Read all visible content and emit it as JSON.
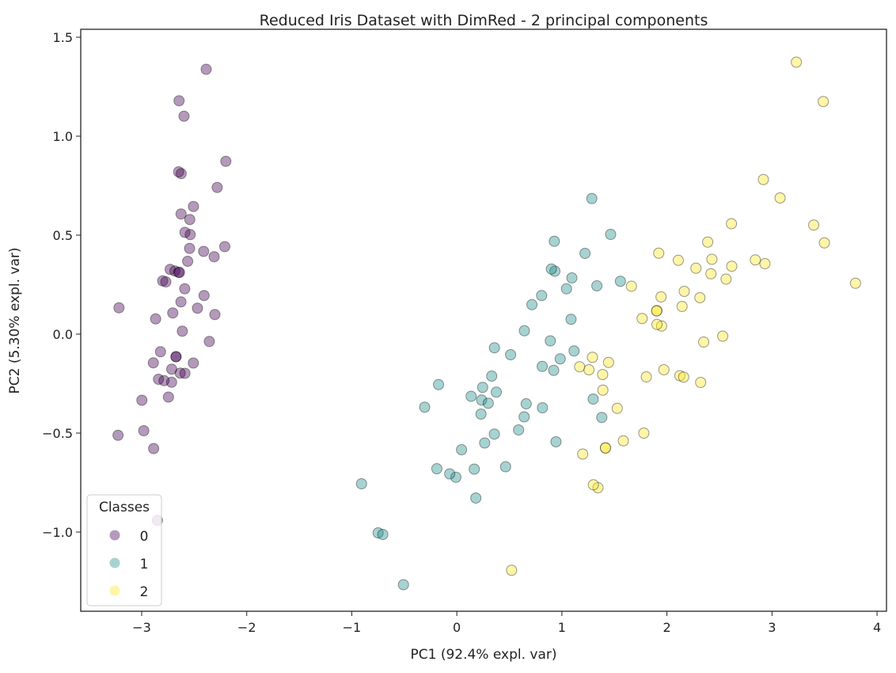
{
  "chart_data": {
    "type": "scatter",
    "title": "Reduced Iris Dataset with DimRed - 2 principal components",
    "xlabel": "PC1 (92.4% expl. var)",
    "ylabel": "PC2 (5.30% expl. var)",
    "xlim": [
      -3.58,
      4.09
    ],
    "ylim": [
      -1.4,
      1.54
    ],
    "xticks": [
      -3,
      -2,
      -1,
      0,
      1,
      2,
      3,
      4
    ],
    "xtick_labels": [
      "−3",
      "−2",
      "−1",
      "0",
      "1",
      "2",
      "3",
      "4"
    ],
    "yticks": [
      -1.0,
      -0.5,
      0.0,
      0.5,
      1.0,
      1.5
    ],
    "ytick_labels": [
      "−1.0",
      "−0.5",
      "0.0",
      "0.5",
      "1.0",
      "1.5"
    ],
    "grid": false,
    "legend": {
      "title": "Classes",
      "placement": "bottom-left"
    },
    "series": [
      {
        "name": "0",
        "color": "#440154",
        "points": [
          [
            -2.684,
            0.319
          ],
          [
            -2.714,
            -0.177
          ],
          [
            -2.889,
            -0.145
          ],
          [
            -2.745,
            -0.318
          ],
          [
            -2.729,
            0.327
          ],
          [
            -2.281,
            0.741
          ],
          [
            -2.821,
            -0.089
          ],
          [
            -2.626,
            0.163
          ],
          [
            -2.886,
            -0.578
          ],
          [
            -2.673,
            -0.114
          ],
          [
            -2.507,
            0.645
          ],
          [
            -2.613,
            0.015
          ],
          [
            -2.787,
            -0.235
          ],
          [
            -3.225,
            -0.511
          ],
          [
            -2.644,
            1.179
          ],
          [
            -2.386,
            1.338
          ],
          [
            -2.624,
            0.811
          ],
          [
            -2.648,
            0.312
          ],
          [
            -2.199,
            0.873
          ],
          [
            -2.588,
            0.514
          ],
          [
            -2.31,
            0.391
          ],
          [
            -2.544,
            0.433
          ],
          [
            -3.216,
            0.133
          ],
          [
            -2.303,
            0.099
          ],
          [
            -2.356,
            -0.037
          ],
          [
            -2.508,
            -0.146
          ],
          [
            -2.469,
            0.131
          ],
          [
            -2.562,
            0.368
          ],
          [
            -2.64,
            0.312
          ],
          [
            -2.633,
            -0.197
          ],
          [
            -2.588,
            -0.198
          ],
          [
            -2.41,
            0.418
          ],
          [
            -2.648,
            0.82
          ],
          [
            -2.597,
            1.101
          ],
          [
            -2.673,
            -0.114
          ],
          [
            -2.867,
            0.077
          ],
          [
            -2.625,
            0.607
          ],
          [
            -2.8,
            0.269
          ],
          [
            -2.98,
            -0.488
          ],
          [
            -2.59,
            0.229
          ],
          [
            -2.77,
            0.264
          ],
          [
            -2.85,
            -0.941
          ],
          [
            -2.998,
            -0.334
          ],
          [
            -2.406,
            0.195
          ],
          [
            -2.209,
            0.442
          ],
          [
            -2.715,
            -0.243
          ],
          [
            -2.538,
            0.503
          ],
          [
            -2.84,
            -0.228
          ],
          [
            -2.542,
            0.579
          ],
          [
            -2.704,
            0.107
          ]
        ]
      },
      {
        "name": "1",
        "color": "#21918c",
        "points": [
          [
            1.285,
            0.685
          ],
          [
            0.933,
            0.318
          ],
          [
            1.464,
            0.504
          ],
          [
            0.181,
            -0.828
          ],
          [
            1.087,
            0.075
          ],
          [
            0.641,
            -0.418
          ],
          [
            1.095,
            0.284
          ],
          [
            -0.749,
            -1.004
          ],
          [
            1.044,
            0.229
          ],
          [
            -0.009,
            -0.723
          ],
          [
            -0.508,
            -1.266
          ],
          [
            0.512,
            -0.104
          ],
          [
            0.265,
            -0.55
          ],
          [
            0.984,
            -0.125
          ],
          [
            -0.174,
            -0.255
          ],
          [
            0.928,
            0.469
          ],
          [
            0.66,
            -0.352
          ],
          [
            0.236,
            -0.333
          ],
          [
            0.944,
            -0.544
          ],
          [
            0.045,
            -0.584
          ],
          [
            1.116,
            -0.085
          ],
          [
            0.358,
            -0.069
          ],
          [
            1.298,
            -0.328
          ],
          [
            0.922,
            -0.183
          ],
          [
            0.715,
            0.149
          ],
          [
            0.9,
            0.329
          ],
          [
            1.333,
            0.244
          ],
          [
            1.557,
            0.267
          ],
          [
            0.813,
            -0.163
          ],
          [
            -0.306,
            -0.369
          ],
          [
            -0.068,
            -0.706
          ],
          [
            -0.19,
            -0.68
          ],
          [
            0.136,
            -0.314
          ],
          [
            1.38,
            -0.421
          ],
          [
            0.588,
            -0.484
          ],
          [
            0.807,
            0.195
          ],
          [
            1.22,
            0.408
          ],
          [
            0.815,
            -0.372
          ],
          [
            0.246,
            -0.269
          ],
          [
            0.166,
            -0.682
          ],
          [
            0.464,
            -0.67
          ],
          [
            0.89,
            -0.034
          ],
          [
            0.23,
            -0.404
          ],
          [
            -0.705,
            -1.012
          ],
          [
            0.357,
            -0.505
          ],
          [
            0.332,
            -0.212
          ],
          [
            0.376,
            -0.293
          ],
          [
            0.643,
            0.017
          ],
          [
            -0.907,
            -0.756
          ],
          [
            0.299,
            -0.349
          ]
        ]
      },
      {
        "name": "2",
        "color": "#fde725",
        "points": [
          [
            2.531,
            -0.01
          ],
          [
            1.415,
            -0.575
          ],
          [
            2.617,
            0.343
          ],
          [
            1.971,
            -0.18
          ],
          [
            2.35,
            -0.04
          ],
          [
            3.397,
            0.551
          ],
          [
            0.521,
            -1.193
          ],
          [
            2.933,
            0.356
          ],
          [
            2.321,
            -0.244
          ],
          [
            2.918,
            0.781
          ],
          [
            1.662,
            0.242
          ],
          [
            1.804,
            -0.216
          ],
          [
            2.165,
            0.216
          ],
          [
            1.344,
            -0.776
          ],
          [
            1.585,
            -0.539
          ],
          [
            1.905,
            0.119
          ],
          [
            1.949,
            0.041
          ],
          [
            3.488,
            1.175
          ],
          [
            3.795,
            0.257
          ],
          [
            1.3,
            -0.761
          ],
          [
            2.428,
            0.378
          ],
          [
            1.198,
            -0.606
          ],
          [
            3.499,
            0.461
          ],
          [
            1.388,
            -0.204
          ],
          [
            2.276,
            0.333
          ],
          [
            2.614,
            0.558
          ],
          [
            1.258,
            -0.18
          ],
          [
            1.291,
            -0.117
          ],
          [
            2.123,
            -0.21
          ],
          [
            2.388,
            0.465
          ],
          [
            2.841,
            0.375
          ],
          [
            3.232,
            1.374
          ],
          [
            2.159,
            -0.217
          ],
          [
            1.444,
            -0.143
          ],
          [
            1.78,
            -0.5
          ],
          [
            3.077,
            0.688
          ],
          [
            2.144,
            0.14
          ],
          [
            1.905,
            0.049
          ],
          [
            1.169,
            -0.165
          ],
          [
            2.108,
            0.373
          ],
          [
            2.314,
            0.184
          ],
          [
            1.922,
            0.409
          ],
          [
            1.415,
            -0.575
          ],
          [
            2.563,
            0.278
          ],
          [
            2.419,
            0.305
          ],
          [
            1.944,
            0.188
          ],
          [
            1.527,
            -0.375
          ],
          [
            1.764,
            0.079
          ],
          [
            1.901,
            0.117
          ],
          [
            1.39,
            -0.283
          ]
        ]
      }
    ]
  }
}
